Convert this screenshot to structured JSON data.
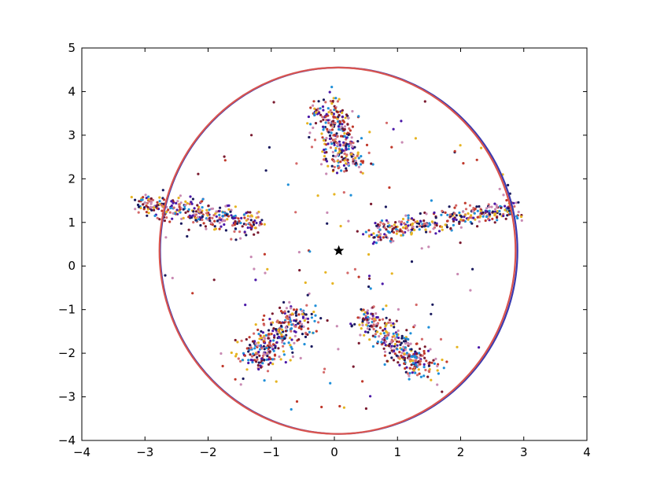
{
  "chart_data": {
    "type": "scatter",
    "title": "",
    "xlabel": "",
    "ylabel": "",
    "xlim": [
      -4,
      4
    ],
    "ylim": [
      -4,
      5
    ],
    "grid": false,
    "legend": "none",
    "x_ticks": [
      -4,
      -3,
      -2,
      -1,
      0,
      1,
      2,
      3,
      4
    ],
    "y_ticks": [
      -4,
      -3,
      -2,
      -1,
      0,
      1,
      2,
      3,
      4,
      5
    ],
    "x_tick_labels": [
      "−4",
      "−3",
      "−2",
      "−1",
      "0",
      "1",
      "2",
      "3",
      "4"
    ],
    "y_tick_labels": [
      "−4",
      "−3",
      "−2",
      "−1",
      "0",
      "1",
      "2",
      "3",
      "4",
      "5"
    ],
    "point_palette": [
      "#4b19a8",
      "#7a1a2f",
      "#c0392b",
      "#d46a6a",
      "#e6b422",
      "#1f8fd8",
      "#1a1a5e",
      "#c98ab3"
    ],
    "clusters": [
      {
        "name": "arm-top",
        "center": [
          0.05,
          3.0
        ],
        "direction": [
          0.25,
          -0.97
        ],
        "length": 1.6,
        "width": 0.32,
        "count": 320
      },
      {
        "name": "arm-upper-left",
        "center": [
          -2.15,
          1.2
        ],
        "direction": [
          0.97,
          -0.25
        ],
        "length": 2.0,
        "width": 0.28,
        "count": 330
      },
      {
        "name": "arm-upper-right",
        "center": [
          1.75,
          1.05
        ],
        "direction": [
          0.97,
          0.25
        ],
        "length": 2.4,
        "width": 0.25,
        "count": 330
      },
      {
        "name": "arm-lower-left",
        "center": [
          -0.9,
          -1.65
        ],
        "direction": [
          0.55,
          0.83
        ],
        "length": 1.5,
        "width": 0.38,
        "count": 330
      },
      {
        "name": "arm-lower-right",
        "center": [
          0.95,
          -1.75
        ],
        "direction": [
          0.62,
          -0.78
        ],
        "length": 1.7,
        "width": 0.32,
        "count": 330
      }
    ],
    "scatter_noise_points": 140,
    "center_marker": {
      "shape": "star",
      "x": 0.07,
      "y": 0.35,
      "color": "#000000"
    },
    "circles": [
      {
        "center": [
          0.07,
          0.35
        ],
        "radius": 2.83,
        "radius_y": 4.2,
        "color": "#3a3ab0"
      },
      {
        "center": [
          0.05,
          0.35
        ],
        "radius": 2.82,
        "radius_y": 4.2,
        "color": "#d9544f"
      }
    ]
  }
}
